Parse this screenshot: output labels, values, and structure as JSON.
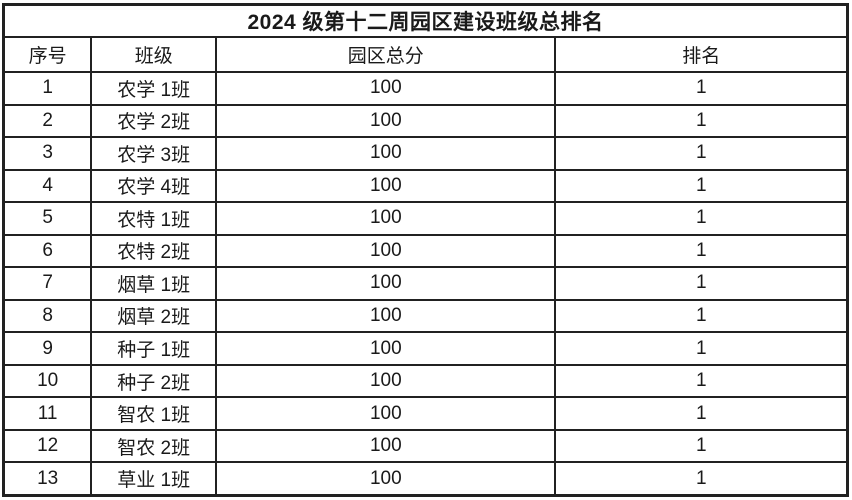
{
  "table": {
    "title": "2024 级第十二周园区建设班级总排名",
    "headers": [
      "序号",
      "班级",
      "园区总分",
      "排名"
    ],
    "rows": [
      {
        "serial": "1",
        "class": "农学 1班",
        "score": "100",
        "rank": "1"
      },
      {
        "serial": "2",
        "class": "农学 2班",
        "score": "100",
        "rank": "1"
      },
      {
        "serial": "3",
        "class": "农学 3班",
        "score": "100",
        "rank": "1"
      },
      {
        "serial": "4",
        "class": "农学 4班",
        "score": "100",
        "rank": "1"
      },
      {
        "serial": "5",
        "class": "农特 1班",
        "score": "100",
        "rank": "1"
      },
      {
        "serial": "6",
        "class": "农特 2班",
        "score": "100",
        "rank": "1"
      },
      {
        "serial": "7",
        "class": "烟草 1班",
        "score": "100",
        "rank": "1"
      },
      {
        "serial": "8",
        "class": "烟草 2班",
        "score": "100",
        "rank": "1"
      },
      {
        "serial": "9",
        "class": "种子 1班",
        "score": "100",
        "rank": "1"
      },
      {
        "serial": "10",
        "class": "种子 2班",
        "score": "100",
        "rank": "1"
      },
      {
        "serial": "11",
        "class": "智农 1班",
        "score": "100",
        "rank": "1"
      },
      {
        "serial": "12",
        "class": "智农 2班",
        "score": "100",
        "rank": "1"
      },
      {
        "serial": "13",
        "class": "草业 1班",
        "score": "100",
        "rank": "1"
      }
    ]
  },
  "colors": {
    "border": "#212121",
    "text": "#1a1a1a",
    "background": "#ffffff"
  }
}
